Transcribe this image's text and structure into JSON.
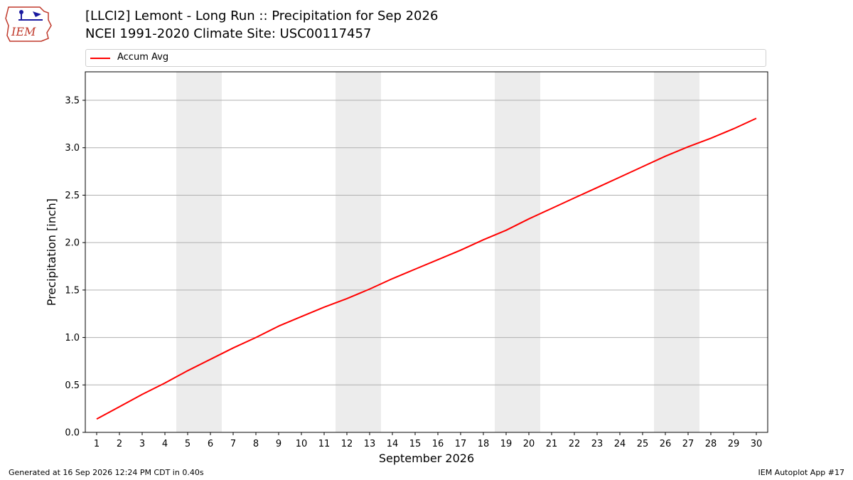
{
  "header": {
    "logo_text": "IEM",
    "title_line1": "[LLCI2] Lemont - Long Run :: Precipitation for Sep 2026",
    "title_line2": "NCEI 1991-2020 Climate Site: USC00117457"
  },
  "footer": {
    "generated": "Generated at 16 Sep 2026 12:24 PM CDT in 0.40s",
    "app": "IEM Autoplot App #17"
  },
  "colors": {
    "line": "#ff0000",
    "weekend_band": "#ececec",
    "grid": "#b0b0b0"
  },
  "chart_data": {
    "type": "line",
    "xlabel": "September 2026",
    "ylabel": "Precipitation [inch]",
    "ylim": [
      0.0,
      3.8
    ],
    "yticks": [
      "0.0",
      "0.5",
      "1.0",
      "1.5",
      "2.0",
      "2.5",
      "3.0",
      "3.5"
    ],
    "xlim": [
      0.5,
      30.5
    ],
    "x": [
      1,
      2,
      3,
      4,
      5,
      6,
      7,
      8,
      9,
      10,
      11,
      12,
      13,
      14,
      15,
      16,
      17,
      18,
      19,
      20,
      21,
      22,
      23,
      24,
      25,
      26,
      27,
      28,
      29,
      30
    ],
    "xtick_labels": [
      "1",
      "2",
      "3",
      "4",
      "5",
      "6",
      "7",
      "8",
      "9",
      "10",
      "11",
      "12",
      "13",
      "14",
      "15",
      "16",
      "17",
      "18",
      "19",
      "20",
      "21",
      "22",
      "23",
      "24",
      "25",
      "26",
      "27",
      "28",
      "29",
      "30"
    ],
    "weekend_days": [
      5,
      6,
      12,
      13,
      19,
      20,
      26,
      27
    ],
    "grid": "horizontal",
    "legend_position": "top",
    "series": [
      {
        "name": "Accum Avg",
        "color": "#ff0000",
        "values": [
          0.14,
          0.27,
          0.4,
          0.52,
          0.65,
          0.77,
          0.89,
          1.0,
          1.12,
          1.22,
          1.32,
          1.41,
          1.51,
          1.62,
          1.72,
          1.82,
          1.92,
          2.03,
          2.13,
          2.25,
          2.36,
          2.47,
          2.58,
          2.69,
          2.8,
          2.91,
          3.01,
          3.1,
          3.2,
          3.31
        ]
      }
    ]
  }
}
